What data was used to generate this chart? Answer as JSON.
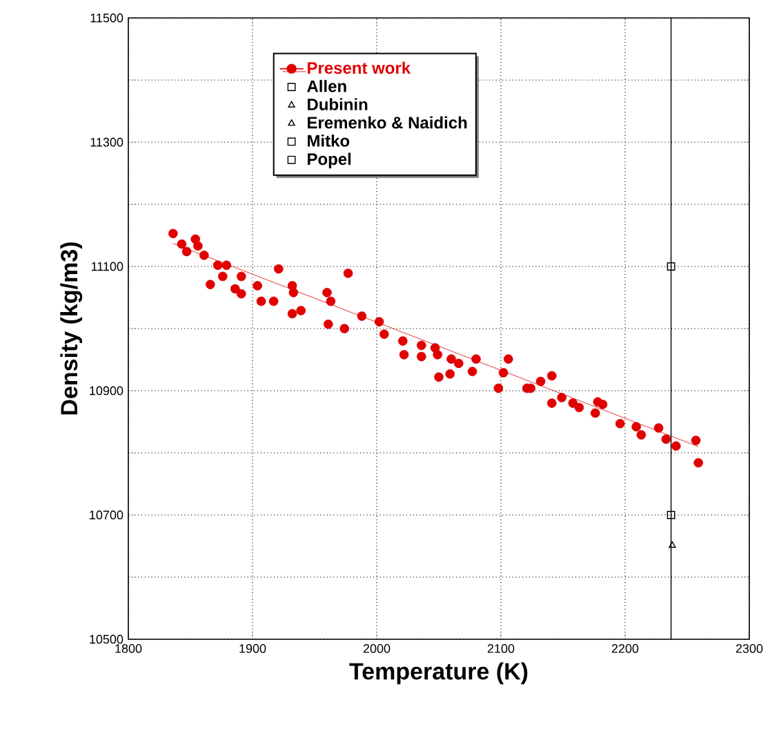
{
  "chart_data": {
    "type": "scatter",
    "xlabel": "Temperature (K)",
    "ylabel": "Density (kg/m3)",
    "xlim": [
      1800,
      2300
    ],
    "xticks": [
      1800,
      1900,
      2000,
      2100,
      2200,
      2300
    ],
    "ylim": [
      10500,
      11500
    ],
    "yticks": [
      10500,
      {
        "value": 10600,
        "label": null
      },
      10700,
      {
        "value": 10800,
        "label": null
      },
      10900,
      {
        "value": 11000,
        "label": null
      },
      11100,
      {
        "value": 11200,
        "label": null
      },
      11300,
      {
        "value": 11400,
        "label": null
      },
      11500
    ],
    "grid": true,
    "legend": "top",
    "ref_lines": [
      {
        "axis": "x",
        "value": 2237,
        "color": "#000000"
      }
    ],
    "series": [
      {
        "name": "Present work",
        "color": "#e00000",
        "marker": "circle",
        "x": [
          1836,
          1843,
          1847,
          1854,
          1856,
          1861,
          1866,
          1872,
          1876,
          1879,
          1886,
          1891,
          1891,
          1904,
          1907,
          1917,
          1921,
          1932,
          1932,
          1933,
          1939,
          1960,
          1961,
          1963,
          1974,
          1977,
          1988,
          2002,
          2006,
          2021,
          2022,
          2036,
          2036,
          2047,
          2049,
          2050,
          2059,
          2060,
          2066,
          2077,
          2080,
          2098,
          2102,
          2106,
          2121,
          2124,
          2132,
          2141,
          2141,
          2149,
          2158,
          2163,
          2176,
          2178,
          2182,
          2196,
          2209,
          2213,
          2227,
          2233,
          2241,
          2257,
          2259
        ],
        "values": [
          11153,
          11136,
          11124,
          11144,
          11133,
          11118,
          11071,
          11102,
          11084,
          11102,
          11064,
          11084,
          11056,
          11069,
          11044,
          11044,
          11096,
          11069,
          11024,
          11058,
          11029,
          11058,
          11007,
          11044,
          11000,
          11089,
          11020,
          11011,
          10991,
          10980,
          10958,
          10973,
          10955,
          10969,
          10958,
          10922,
          10927,
          10951,
          10944,
          10931,
          10951,
          10904,
          10929,
          10951,
          10904,
          10904,
          10915,
          10924,
          10880,
          10889,
          10880,
          10873,
          10864,
          10882,
          10878,
          10847,
          10842,
          10829,
          10840,
          10822,
          10811,
          10820,
          10784
        ]
      },
      {
        "type": "line",
        "color": "#e00000",
        "marker": "none",
        "x": [
          1836,
          2259
        ],
        "values": [
          11137,
          10810
        ]
      },
      {
        "name": "Allen",
        "color": "#000000",
        "marker": "square",
        "x": [
          2237,
          2237
        ],
        "values": [
          11100,
          10700
        ]
      },
      {
        "name": "Dubinin",
        "color": "#000000",
        "marker": "triangle"
      },
      {
        "name": "Eremenko & Naidich",
        "color": "#000000",
        "marker": "triangle",
        "x": [
          2238
        ],
        "values": [
          10651
        ]
      },
      {
        "name": "Mitko",
        "color": "#000000",
        "marker": "square"
      },
      {
        "name": "Popel",
        "color": "#000000",
        "marker": "square"
      }
    ]
  }
}
